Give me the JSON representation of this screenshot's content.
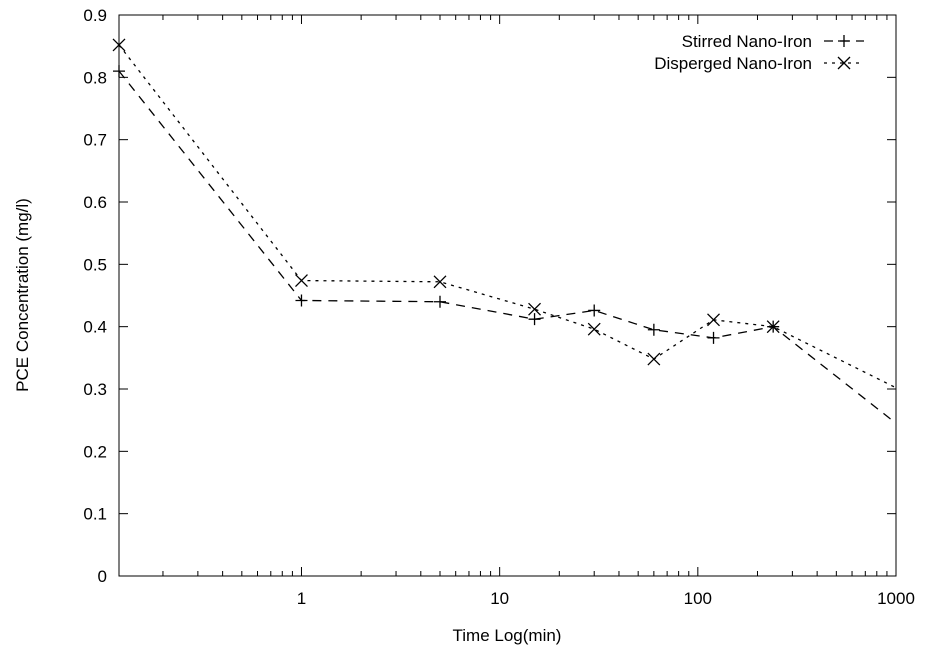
{
  "chart_data": {
    "type": "line",
    "xlabel": "Time  Log(min)",
    "ylabel": "PCE Concentration  (mg/l)",
    "xscale": "log",
    "xlim": [
      0.12,
      1000
    ],
    "ylim": [
      0,
      0.9
    ],
    "x_ticks": [
      1,
      10,
      100,
      1000
    ],
    "x_tick_labels": [
      "1",
      "10",
      "100",
      "1000"
    ],
    "y_ticks": [
      0,
      0.1,
      0.2,
      0.3,
      0.4,
      0.5,
      0.6,
      0.7,
      0.8,
      0.9
    ],
    "y_tick_labels": [
      "0",
      "0.1",
      "0.2",
      "0.3",
      "0.4",
      "0.5",
      "0.6",
      "0.7",
      "0.8",
      "0.9"
    ],
    "grid": false,
    "legend_position": "top-right",
    "series": [
      {
        "name": "Stirred Nano-Iron",
        "line_style": "dashed",
        "marker": "plus",
        "color": "#000000",
        "x": [
          0.12,
          1,
          5,
          15,
          30,
          60,
          120,
          240,
          1000
        ],
        "y": [
          0.81,
          0.442,
          0.44,
          0.412,
          0.426,
          0.395,
          0.382,
          0.4,
          0.245
        ]
      },
      {
        "name": "Disperged Nano-Iron",
        "line_style": "dotted",
        "marker": "cross",
        "color": "#000000",
        "x": [
          0.12,
          1,
          5,
          15,
          30,
          60,
          120,
          240,
          1000
        ],
        "y": [
          0.852,
          0.474,
          0.472,
          0.428,
          0.396,
          0.348,
          0.411,
          0.4,
          0.302
        ]
      }
    ]
  }
}
